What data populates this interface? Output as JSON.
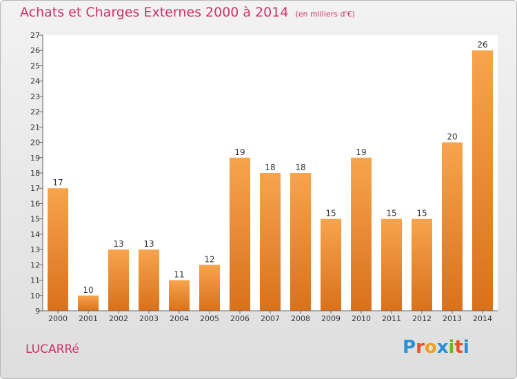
{
  "page": {
    "title": "Achats et Charges Externes 2000 à 2014",
    "unit": "(en milliers d'€)",
    "commune": "LUCARRé",
    "brand": {
      "letters": [
        "P",
        "r",
        "o",
        "x",
        "i",
        "t",
        "i"
      ],
      "colors": [
        "#2a8fd4",
        "#e8522a",
        "#f0a01e",
        "#2a8fd4",
        "#6cb52d",
        "#e8522a",
        "#2a8fd4"
      ]
    }
  },
  "colors": {
    "bar_top": "#f7a44c",
    "bar_bottom": "#d9711c",
    "title": "#d0306a"
  },
  "chart_data": {
    "type": "bar",
    "title": "Achats et Charges Externes 2000 à 2014",
    "subtitle": "(en milliers d'€)",
    "categories": [
      "2000",
      "2001",
      "2002",
      "2003",
      "2004",
      "2005",
      "2006",
      "2007",
      "2008",
      "2009",
      "2010",
      "2011",
      "2012",
      "2013",
      "2014"
    ],
    "values": [
      17,
      10,
      13,
      13,
      11,
      12,
      19,
      18,
      18,
      15,
      19,
      15,
      15,
      20,
      26
    ],
    "ylim": [
      9,
      27
    ],
    "yticks": [
      9,
      10,
      11,
      12,
      13,
      14,
      15,
      16,
      17,
      18,
      19,
      20,
      21,
      22,
      23,
      24,
      25,
      26,
      27
    ],
    "grid": false,
    "data_labels": true
  }
}
